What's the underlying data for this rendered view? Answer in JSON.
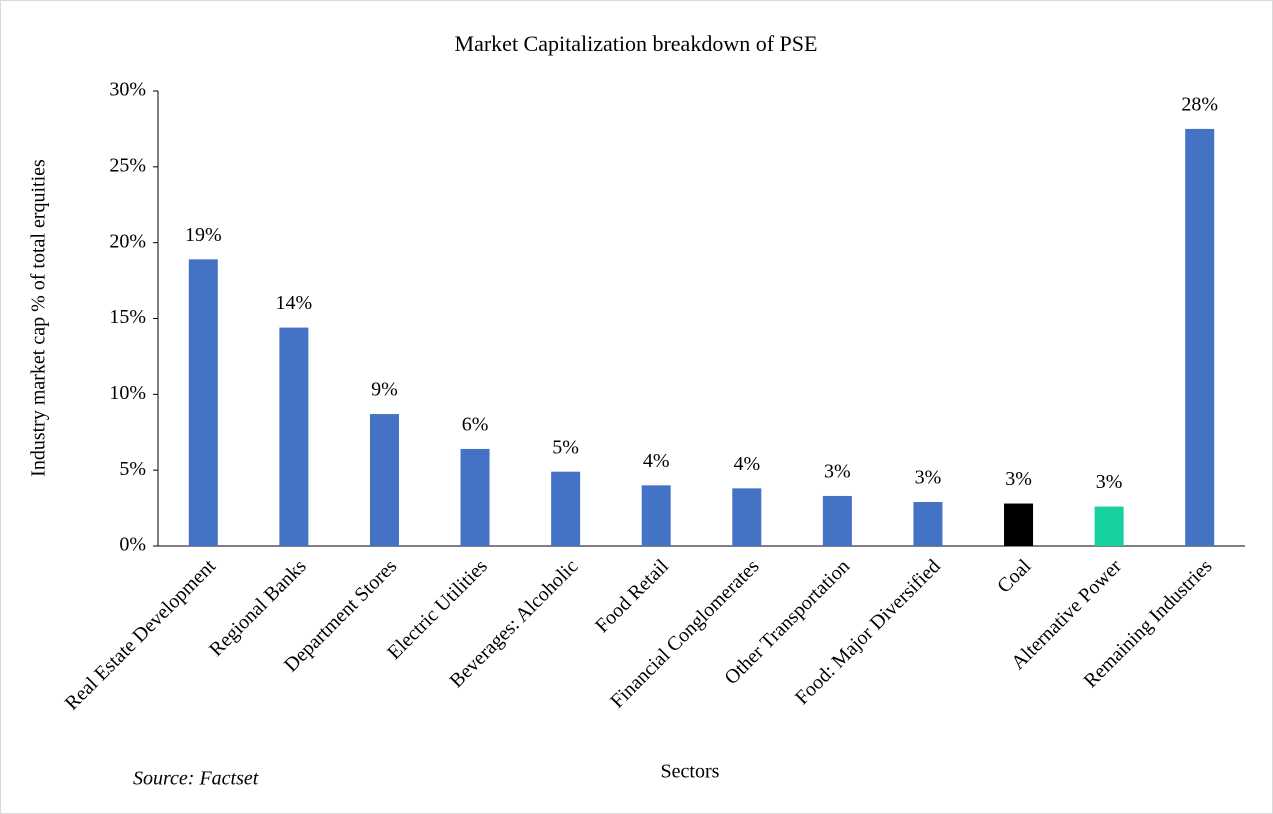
{
  "chart_data": {
    "type": "bar",
    "title": "Market Capitalization breakdown of PSE",
    "x_label": "Sectors",
    "y_label": "Industry market cap % of total erquities",
    "source": "Source: Factset",
    "categories": [
      "Real Estate Development",
      "Regional Banks",
      "Department Stores",
      "Electric Utilities",
      "Beverages: Alcoholic",
      "Food Retail",
      "Financial Conglomerates",
      "Other Transportation",
      "Food: Major Diversified",
      "Coal",
      "Alternative Power",
      "Remaining Industries"
    ],
    "values": [
      18.9,
      14.4,
      8.7,
      6.4,
      4.9,
      4.0,
      3.8,
      3.3,
      2.9,
      2.8,
      2.6,
      27.5
    ],
    "value_labels": [
      "19%",
      "14%",
      "9%",
      "6%",
      "5%",
      "4%",
      "4%",
      "3%",
      "3%",
      "3%",
      "3%",
      "28%"
    ],
    "colors": [
      "#4472c4",
      "#4472c4",
      "#4472c4",
      "#4472c4",
      "#4472c4",
      "#4472c4",
      "#4472c4",
      "#4472c4",
      "#4472c4",
      "#000000",
      "#17d0a0",
      "#4472c4"
    ],
    "ylim": [
      0,
      30
    ],
    "yticks": [
      {
        "value": 0,
        "label": "0%"
      },
      {
        "value": 5,
        "label": "5%"
      },
      {
        "value": 10,
        "label": "10%"
      },
      {
        "value": 15,
        "label": "15%"
      },
      {
        "value": 20,
        "label": "20%"
      },
      {
        "value": 25,
        "label": "25%"
      },
      {
        "value": 30,
        "label": "30%"
      }
    ],
    "grid": false
  }
}
